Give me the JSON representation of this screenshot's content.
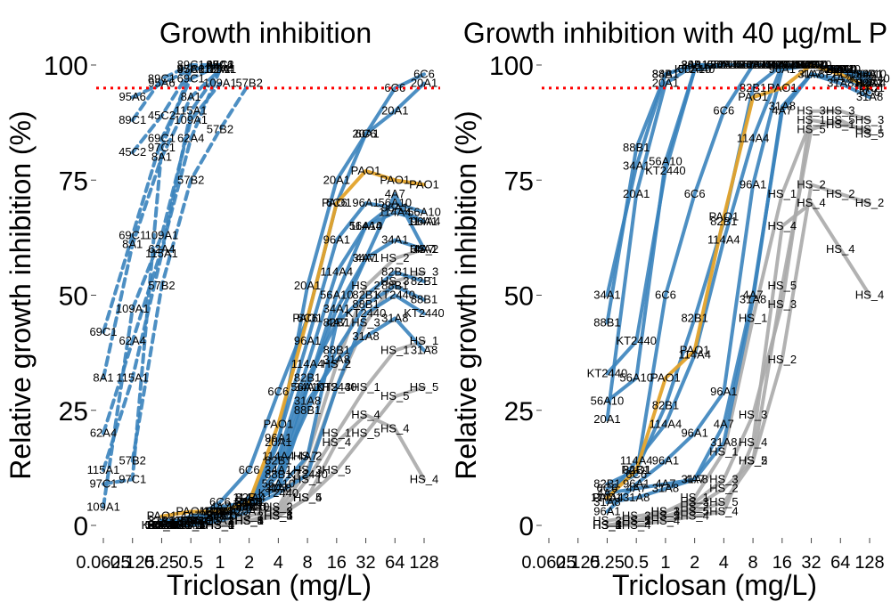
{
  "chart_data": [
    {
      "type": "line",
      "title": "Growth inhibition",
      "xlabel": "Triclosan (mg/L)",
      "ylabel": "Relative growth inhibition (%)",
      "x_scale": "log2",
      "x_ticks": [
        "0.0625",
        "0.125",
        "0.25",
        "0.5",
        "1",
        "2",
        "4",
        "8",
        "16",
        "32",
        "64",
        "128"
      ],
      "y_ticks": [
        "0",
        "25",
        "50",
        "75",
        "100"
      ],
      "ylim": [
        0,
        100
      ],
      "reference_line": {
        "y": 95,
        "color": "#ff0000",
        "style": "dotted"
      },
      "colors": {
        "dashed": "#3a83bc",
        "solid": "#3a83bc",
        "pao": "#e3a32b",
        "hs": "#aaaaaa"
      },
      "series": [
        {
          "name": "45C2",
          "style": "dashed",
          "x": [
            0.125,
            0.25,
            0.5,
            1
          ],
          "y": [
            81,
            89,
            99,
            100
          ]
        },
        {
          "name": "89C1",
          "style": "dashed",
          "x": [
            0.125,
            0.25,
            0.5,
            1
          ],
          "y": [
            88,
            97,
            100,
            100
          ]
        },
        {
          "name": "95A6",
          "style": "dashed",
          "x": [
            0.125,
            0.25,
            0.5,
            1
          ],
          "y": [
            93,
            96,
            99,
            100
          ]
        },
        {
          "name": "109A1",
          "style": "dashed",
          "x": [
            0.0625,
            0.125,
            0.25,
            0.5,
            1
          ],
          "y": [
            4,
            47,
            63,
            88,
            96
          ]
        },
        {
          "name": "57B2",
          "style": "dashed",
          "x": [
            0.125,
            0.25,
            0.5,
            1,
            2
          ],
          "y": [
            14,
            52,
            75,
            86,
            96
          ]
        },
        {
          "name": "62A4",
          "style": "dashed",
          "x": [
            0.0625,
            0.125,
            0.25,
            0.5,
            1
          ],
          "y": [
            20,
            40,
            60,
            84,
            99
          ]
        },
        {
          "name": "8A1",
          "style": "dashed",
          "x": [
            0.0625,
            0.125,
            0.25,
            0.5,
            1
          ],
          "y": [
            32,
            61,
            80,
            93,
            99
          ]
        },
        {
          "name": "69C1",
          "style": "dashed",
          "x": [
            0.0625,
            0.125,
            0.25,
            0.5,
            1
          ],
          "y": [
            42,
            63,
            84,
            97,
            100
          ]
        },
        {
          "name": "115A1",
          "style": "dashed",
          "x": [
            0.0625,
            0.125,
            0.25,
            0.5,
            1
          ],
          "y": [
            12,
            32,
            59,
            90,
            99
          ]
        },
        {
          "name": "97C1",
          "style": "dashed",
          "x": [
            0.0625,
            0.125,
            0.25,
            0.5,
            1
          ],
          "y": [
            9,
            10,
            82,
            99,
            100
          ]
        },
        {
          "name": "4A7",
          "style": "solid",
          "x": [
            0.25,
            0.5,
            1,
            2,
            4,
            8,
            16,
            32,
            64,
            128
          ],
          "y": [
            0,
            2,
            4,
            5,
            8,
            15,
            44,
            58,
            72,
            60
          ]
        },
        {
          "name": "20A1",
          "style": "solid",
          "x": [
            0.25,
            0.5,
            1,
            2,
            4,
            8,
            16,
            32,
            64,
            128
          ],
          "y": [
            0,
            0,
            1,
            3,
            18,
            52,
            75,
            85,
            90,
            96
          ]
        },
        {
          "name": "6C6",
          "style": "solid",
          "x": [
            0.25,
            0.5,
            1,
            2,
            4,
            8,
            16,
            32,
            64,
            128
          ],
          "y": [
            0,
            1,
            5,
            12,
            29,
            45,
            70,
            85,
            95,
            98
          ]
        },
        {
          "name": "31A8",
          "style": "solid",
          "x": [
            0.25,
            0.5,
            1,
            2,
            4,
            8,
            16,
            32,
            64,
            128
          ],
          "y": [
            1,
            1,
            3,
            5,
            8,
            27,
            36,
            41,
            45,
            38
          ]
        },
        {
          "name": "56A10",
          "style": "solid",
          "x": [
            0.25,
            0.5,
            1,
            2,
            4,
            8,
            16,
            32,
            64,
            128
          ],
          "y": [
            0,
            0,
            2,
            4,
            9,
            30,
            50,
            65,
            70,
            68
          ]
        },
        {
          "name": "114A4",
          "style": "solid",
          "x": [
            0.25,
            0.5,
            1,
            2,
            4,
            8,
            16,
            32,
            64,
            128
          ],
          "y": [
            0,
            1,
            3,
            6,
            15,
            35,
            55,
            65,
            68,
            66
          ]
        },
        {
          "name": "34A1",
          "style": "solid",
          "x": [
            0.25,
            0.5,
            1,
            2,
            4,
            8,
            16,
            32,
            64,
            128
          ],
          "y": [
            0,
            0,
            2,
            5,
            12,
            30,
            47,
            58,
            62,
            60
          ]
        },
        {
          "name": "88B1",
          "style": "solid",
          "x": [
            0.25,
            0.5,
            1,
            2,
            4,
            8,
            16,
            32,
            64,
            128
          ],
          "y": [
            0,
            1,
            2,
            4,
            11,
            25,
            38,
            48,
            52,
            49
          ]
        },
        {
          "name": "82B1",
          "style": "solid",
          "x": [
            0.25,
            0.5,
            1,
            2,
            4,
            8,
            16,
            32,
            64,
            128
          ],
          "y": [
            1,
            1,
            3,
            6,
            14,
            32,
            44,
            50,
            55,
            53
          ]
        },
        {
          "name": "96A1",
          "style": "solid",
          "x": [
            0.25,
            0.5,
            1,
            2,
            4,
            8,
            16,
            32,
            64,
            128
          ],
          "y": [
            0,
            0,
            2,
            4,
            19,
            40,
            62,
            70,
            69,
            66
          ]
        },
        {
          "name": "KT2440",
          "style": "solid",
          "x": [
            0.25,
            0.5,
            1,
            2,
            4,
            8,
            16,
            32,
            64,
            128
          ],
          "y": [
            0,
            1,
            3,
            4,
            7,
            11,
            30,
            46,
            50,
            46
          ]
        },
        {
          "name": "PAO1",
          "style": "pao",
          "x": [
            0.25,
            0.5,
            1,
            2,
            4,
            8,
            16,
            32,
            64,
            128
          ],
          "y": [
            2,
            3,
            3,
            5,
            22,
            45,
            70,
            77,
            75,
            74
          ]
        },
        {
          "name": "HS_1",
          "style": "hs",
          "x": [
            0.25,
            0.5,
            1,
            2,
            4,
            8,
            16,
            32,
            64,
            128
          ],
          "y": [
            0,
            0,
            0,
            1,
            2,
            10,
            20,
            30,
            38,
            40
          ]
        },
        {
          "name": "HS_2",
          "style": "hs",
          "x": [
            0.25,
            0.5,
            1,
            2,
            4,
            8,
            16,
            32,
            64,
            128
          ],
          "y": [
            0,
            0,
            1,
            2,
            4,
            15,
            35,
            52,
            58,
            60
          ]
        },
        {
          "name": "HS_3",
          "style": "hs",
          "x": [
            0.25,
            0.5,
            1,
            2,
            4,
            8,
            16,
            32,
            64,
            128
          ],
          "y": [
            0,
            0,
            1,
            1,
            3,
            12,
            30,
            44,
            53,
            55
          ]
        },
        {
          "name": "HS_4",
          "style": "hs",
          "x": [
            0.25,
            0.5,
            1,
            2,
            4,
            8,
            16,
            32,
            64,
            128
          ],
          "y": [
            0,
            0,
            0,
            1,
            2,
            6,
            18,
            24,
            21,
            10
          ]
        },
        {
          "name": "HS_5",
          "style": "hs",
          "x": [
            0.25,
            0.5,
            1,
            2,
            4,
            8,
            16,
            32,
            64,
            128
          ],
          "y": [
            0,
            0,
            0,
            1,
            2,
            6,
            12,
            20,
            28,
            30
          ]
        }
      ]
    },
    {
      "type": "line",
      "title": "Growth inhibition with 40 µg/mL P",
      "xlabel": "Triclosan (mg/L)",
      "ylabel": "Relative growth inhibition (%)",
      "x_scale": "log2",
      "x_ticks": [
        "0.0625",
        "0.125",
        "0.25",
        "0.5",
        "1",
        "2",
        "4",
        "8",
        "16",
        "32",
        "64",
        "128"
      ],
      "y_ticks": [
        "0",
        "25",
        "50",
        "75",
        "100"
      ],
      "ylim": [
        0,
        100
      ],
      "reference_line": {
        "y": 95,
        "color": "#ff0000",
        "style": "dotted"
      },
      "colors": {
        "solid": "#3a83bc",
        "pao": "#e3a32b",
        "hs": "#aaaaaa"
      },
      "series": [
        {
          "name": "34A1",
          "style": "solid",
          "x": [
            0.25,
            0.5,
            1,
            2,
            4,
            8,
            16,
            32,
            64,
            128
          ],
          "y": [
            50,
            78,
            98,
            100,
            100,
            100,
            100,
            100,
            99,
            98
          ]
        },
        {
          "name": "88B1",
          "style": "solid",
          "x": [
            0.25,
            0.5,
            1,
            2,
            4,
            8,
            16,
            32,
            64,
            128
          ],
          "y": [
            44,
            82,
            98,
            100,
            100,
            100,
            100,
            100,
            99,
            98
          ]
        },
        {
          "name": "KT2440",
          "style": "solid",
          "x": [
            0.25,
            0.5,
            1,
            2,
            4,
            8,
            16,
            32,
            64,
            128
          ],
          "y": [
            33,
            40,
            77,
            99,
            100,
            100,
            100,
            100,
            99,
            97
          ]
        },
        {
          "name": "56A10",
          "style": "solid",
          "x": [
            0.25,
            0.5,
            1,
            2,
            4,
            8,
            16,
            32,
            64,
            128
          ],
          "y": [
            27,
            32,
            79,
            99,
            100,
            100,
            100,
            100,
            99,
            98
          ]
        },
        {
          "name": "20A1",
          "style": "solid",
          "x": [
            0.25,
            0.5,
            1,
            2,
            4,
            8,
            16,
            32,
            64,
            128
          ],
          "y": [
            23,
            72,
            96,
            100,
            100,
            100,
            100,
            100,
            99,
            96
          ]
        },
        {
          "name": "6C6",
          "style": "solid",
          "x": [
            0.25,
            0.5,
            1,
            2,
            4,
            8,
            16,
            32,
            64,
            128
          ],
          "y": [
            8,
            11,
            50,
            72,
            90,
            100,
            100,
            100,
            99,
            94
          ]
        },
        {
          "name": "82B1",
          "style": "solid",
          "x": [
            0.25,
            0.5,
            1,
            2,
            4,
            8,
            16,
            32,
            64,
            128
          ],
          "y": [
            9,
            12,
            26,
            45,
            66,
            95,
            100,
            100,
            99,
            96
          ]
        },
        {
          "name": "114A4",
          "style": "solid",
          "x": [
            0.25,
            0.5,
            1,
            2,
            4,
            8,
            16,
            32,
            64,
            128
          ],
          "y": [
            6,
            14,
            22,
            37,
            62,
            84,
            100,
            100,
            99,
            96
          ]
        },
        {
          "name": "96A1",
          "style": "solid",
          "x": [
            0.25,
            0.5,
            1,
            2,
            4,
            8,
            16,
            32,
            64,
            128
          ],
          "y": [
            3,
            9,
            14,
            20,
            29,
            74,
            99,
            100,
            99,
            96
          ]
        },
        {
          "name": "31A8",
          "style": "solid",
          "x": [
            0.25,
            0.5,
            1,
            2,
            4,
            8,
            16,
            32,
            64,
            128
          ],
          "y": [
            5,
            6,
            8,
            10,
            18,
            49,
            91,
            98,
            96,
            93
          ]
        },
        {
          "name": "4A7",
          "style": "solid",
          "x": [
            0.25,
            0.5,
            1,
            2,
            4,
            8,
            16,
            32,
            64,
            128
          ],
          "y": [
            7,
            8,
            9,
            10,
            22,
            50,
            90,
            98,
            97,
            95
          ]
        },
        {
          "name": "PAO1",
          "style": "pao",
          "x": [
            0.25,
            0.5,
            1,
            2,
            4,
            8,
            16,
            32,
            64,
            128
          ],
          "y": [
            6,
            12,
            32,
            38,
            67,
            93,
            95,
            100,
            98,
            95
          ]
        },
        {
          "name": "HS_1",
          "style": "hs",
          "x": [
            0.25,
            0.5,
            1,
            2,
            4,
            8,
            16,
            32,
            64,
            128
          ],
          "y": [
            0,
            1,
            3,
            6,
            16,
            45,
            72,
            88,
            87,
            86
          ]
        },
        {
          "name": "HS_2",
          "style": "hs",
          "x": [
            0.25,
            0.5,
            1,
            2,
            4,
            8,
            16,
            32,
            64,
            128
          ],
          "y": [
            0,
            1,
            2,
            4,
            8,
            14,
            36,
            74,
            72,
            70
          ]
        },
        {
          "name": "HS_3",
          "style": "hs",
          "x": [
            0.25,
            0.5,
            1,
            2,
            4,
            8,
            16,
            32,
            64,
            128
          ],
          "y": [
            1,
            2,
            3,
            5,
            10,
            24,
            48,
            90,
            90,
            88
          ]
        },
        {
          "name": "HS_4",
          "style": "hs",
          "x": [
            0.25,
            0.5,
            1,
            2,
            4,
            8,
            16,
            32,
            64,
            128
          ],
          "y": [
            0,
            0,
            1,
            2,
            3,
            18,
            65,
            70,
            60,
            50
          ]
        },
        {
          "name": "HS_5",
          "style": "hs",
          "x": [
            0.25,
            0.5,
            1,
            2,
            4,
            8,
            16,
            32,
            64,
            128
          ],
          "y": [
            0,
            1,
            2,
            3,
            5,
            14,
            52,
            86,
            88,
            85
          ]
        }
      ]
    }
  ]
}
